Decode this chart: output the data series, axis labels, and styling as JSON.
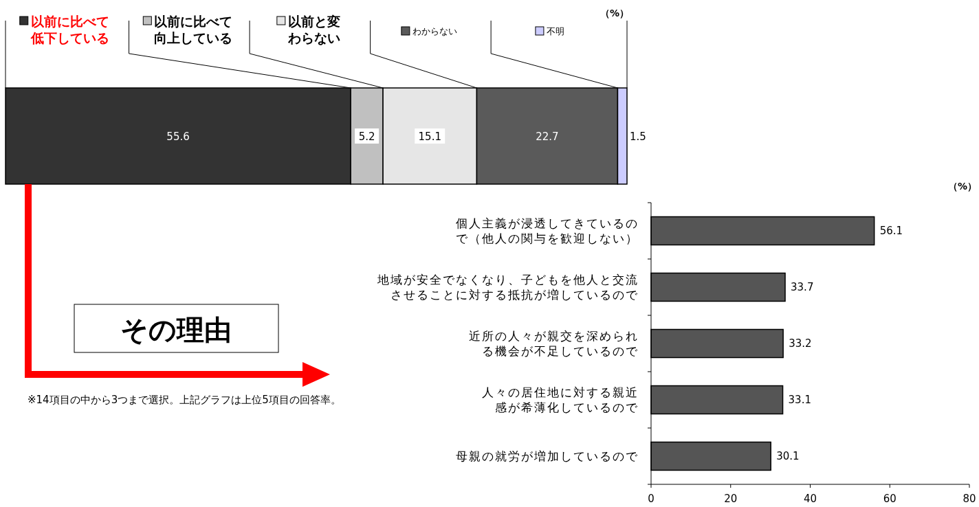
{
  "chart_data": [
    {
      "type": "bar",
      "orientation": "horizontal",
      "stacked": true,
      "categories": [
        null
      ],
      "data_labels": true,
      "legend": "top",
      "series": [
        {
          "name": "以前に比べて低下している",
          "color": "#333333",
          "values": [
            55.6
          ]
        },
        {
          "name": "以前に比べて向上している",
          "color": "#c0c0c0",
          "values": [
            5.2
          ]
        },
        {
          "name": "以前と変わらない",
          "color": "#e6e6e6",
          "values": [
            15.1
          ]
        },
        {
          "name": "わからない",
          "color": "#5a5a5a",
          "values": [
            22.7
          ]
        },
        {
          "name": "不明",
          "color": "#ccccff",
          "values": [
            1.5
          ]
        }
      ],
      "annotations": [
        "（%）",
        "その理由",
        "※14項目の中から3つまで選択。上記グラフは上位5項目の回答率。"
      ]
    },
    {
      "type": "bar",
      "orientation": "horizontal",
      "categories": [
        "個人主義が浸透してきているので（他人の関与を歓迎しない）",
        "地域が安全でなくなり、子どもを他人と交流させることに対する抵抗が増しているので",
        "近所の人々が親交を深められる機会が不足しているので",
        "人々の居住地に対する親近感が希薄化しているので",
        "母親の就労が増加しているので"
      ],
      "values": [
        56.1,
        33.7,
        33.2,
        33.1,
        30.1
      ],
      "color": "#555555",
      "xlim": [
        0,
        80
      ],
      "xticks": [
        0,
        20,
        40,
        60,
        80
      ],
      "data_labels": true,
      "annotations": [
        "（%）"
      ]
    }
  ]
}
